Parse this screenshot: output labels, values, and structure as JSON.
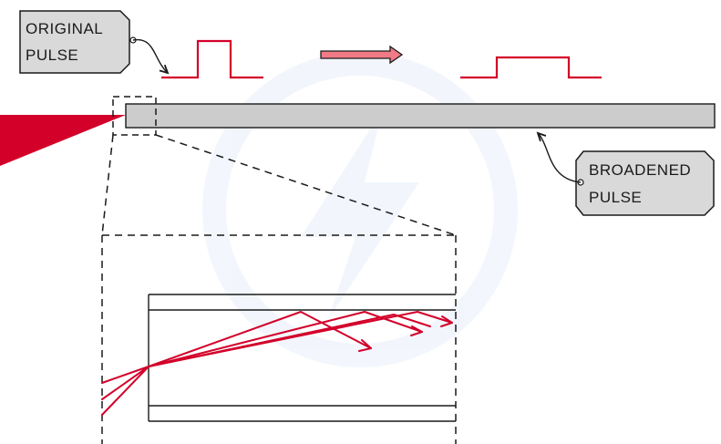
{
  "labels": {
    "original_pulse_line1": "ORIGINAL",
    "original_pulse_line2": "PULSE",
    "broadened_pulse_line1": "BROADENED",
    "broadened_pulse_line2": "PULSE"
  },
  "colors": {
    "red": "#d3002a",
    "fibre_fill": "#cccccc",
    "tag_fill": "#d9d9d9",
    "arrow_fill": "#f07a86",
    "outline": "#1a1a1a"
  }
}
